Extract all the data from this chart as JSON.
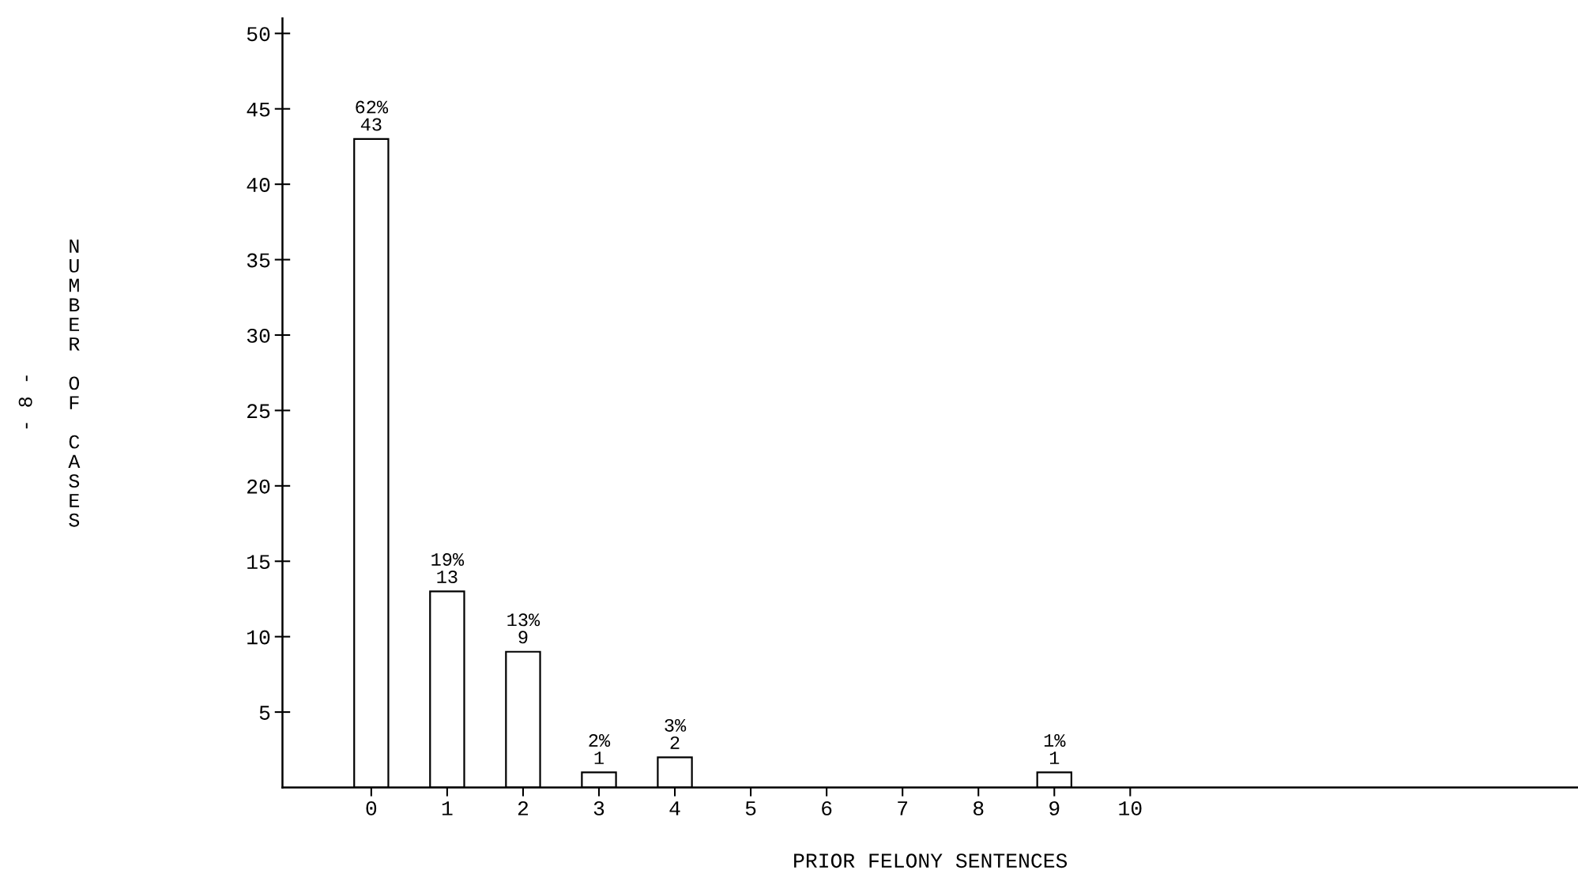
{
  "chart_data": {
    "type": "bar",
    "xlabel": "PRIOR FELONY SENTENCES",
    "ylabel": "NUMBER OF CASES",
    "categories": [
      "0",
      "1",
      "2",
      "3",
      "4",
      "5",
      "6",
      "7",
      "8",
      "9",
      "10"
    ],
    "values": [
      43,
      13,
      9,
      1,
      2,
      0,
      0,
      0,
      0,
      1,
      0
    ],
    "value_labels": [
      "62%\n43",
      "19%\n13",
      "13%\n9",
      "2%\n1",
      "3%\n2",
      null,
      null,
      null,
      null,
      "1%\n1",
      null
    ],
    "color": "#ffffff",
    "ylim": [
      0,
      51
    ],
    "yticks": [
      5,
      10,
      15,
      20,
      25,
      30,
      35,
      40,
      45,
      50
    ],
    "grid": false,
    "legend": false,
    "annotations": [
      "- 8 -"
    ]
  }
}
